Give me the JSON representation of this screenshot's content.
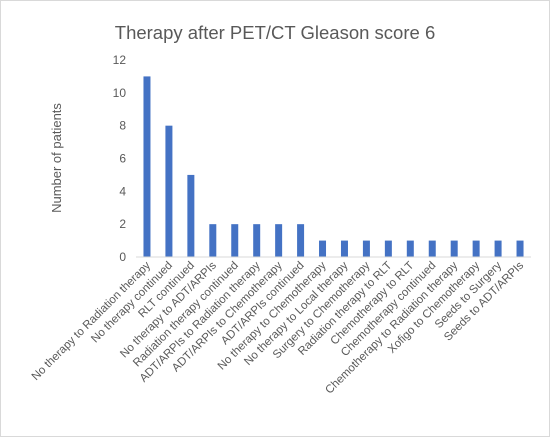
{
  "chart_data": {
    "type": "bar",
    "title": "Therapy after PET/CT Gleason score 6",
    "xlabel": "",
    "ylabel": "Number of patients",
    "ylim": [
      0,
      12
    ],
    "yticks": [
      0,
      2,
      4,
      6,
      8,
      10,
      12
    ],
    "grid": false,
    "legend": "none",
    "bar_color": "#4472c4",
    "categories": [
      "No therapy to Radiation therapy",
      "No therapy continued",
      "RLT continued",
      "No therapy to ADT/ARPIs",
      "Radiation therapy continued",
      "ADT/ARPIs to Radiation therapy",
      "ADT/ARPIs to Chemotherapy",
      "ADT/ARPIs continued",
      "No therapy to Chemotherapy",
      "No therapy to Local therapy",
      "Surgery to Chemotherapy",
      "Radiation therapy to RLT",
      "Chemotherapy to RLT",
      "Chemotherapy continued",
      "Chemotherapy to Radiation therapy",
      "Xofigo to Chemotherapy",
      "Seeds to Surgery",
      "Seeds to ADT/ARPIs"
    ],
    "values": [
      11,
      8,
      5,
      2,
      2,
      2,
      2,
      2,
      1,
      1,
      1,
      1,
      1,
      1,
      1,
      1,
      1,
      1
    ]
  }
}
